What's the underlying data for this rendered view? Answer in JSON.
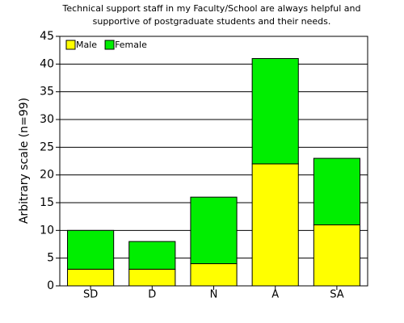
{
  "chart_data": {
    "type": "stacked_bar",
    "title": [
      "Technical support staff in my Faculty/School are always helpful and",
      "supportive of postgraduate students and their needs."
    ],
    "y_label": "Arbitrary scale (n=99)",
    "categories": [
      "SD",
      "D",
      "N",
      "A",
      "SA"
    ],
    "series": [
      {
        "name": "Male",
        "color": "#ffff00",
        "values": [
          3,
          3,
          4,
          22,
          11
        ]
      },
      {
        "name": "Female",
        "color": "#00ee00",
        "values": [
          7,
          5,
          12,
          19,
          12
        ]
      }
    ],
    "ylim": [
      0,
      45
    ],
    "yticks": [
      0,
      5,
      10,
      15,
      20,
      25,
      30,
      35,
      40,
      45
    ],
    "grid": true,
    "legend": "top-left"
  }
}
